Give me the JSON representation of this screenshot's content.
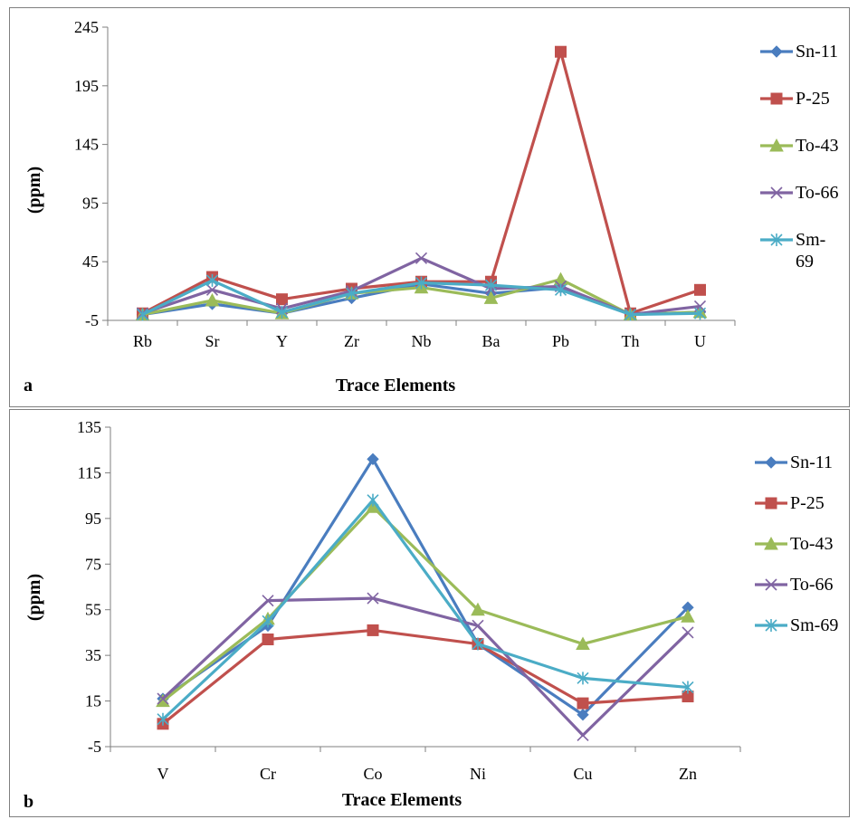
{
  "colors": {
    "Sn-11": "#4a7dbf",
    "P-25": "#c0504d",
    "To-43": "#9bbb59",
    "To-66": "#8064a2",
    "Sm-69": "#4bacc6",
    "axis": "#7f7f7f",
    "frame": "#7f7f7f"
  },
  "chart_data": [
    {
      "type": "line",
      "panel_label": "a",
      "title": "",
      "xlabel": "Trace  Elements",
      "ylabel": "(ppm)",
      "categories": [
        "Rb",
        "Sr",
        "Y",
        "Zr",
        "Nb",
        "Ba",
        "Pb",
        "Th",
        "U"
      ],
      "ylim": [
        -5,
        245
      ],
      "yticks": [
        "-5",
        "45",
        "95",
        "145",
        "195",
        "245"
      ],
      "grid": false,
      "legend_position": "right",
      "series": [
        {
          "name": "Sn-11",
          "marker": "diamond",
          "values": [
            0,
            9,
            1,
            14,
            26,
            18,
            23,
            0,
            2
          ]
        },
        {
          "name": "P-25",
          "marker": "square",
          "values": [
            1,
            32,
            13,
            22,
            28,
            28,
            224,
            1,
            21
          ]
        },
        {
          "name": "To-43",
          "marker": "triangle",
          "values": [
            0,
            12,
            1,
            18,
            23,
            14,
            30,
            0,
            2
          ]
        },
        {
          "name": "To-66",
          "marker": "x",
          "values": [
            1,
            21,
            5,
            20,
            48,
            22,
            24,
            0,
            7
          ]
        },
        {
          "name": "Sm-69",
          "marker": "star",
          "values": [
            0,
            29,
            2,
            18,
            27,
            25,
            21,
            0,
            1
          ]
        }
      ]
    },
    {
      "type": "line",
      "panel_label": "b",
      "title": "",
      "xlabel": "Trace Elements",
      "ylabel": "(ppm)",
      "categories": [
        "V",
        "Cr",
        "Co",
        "Ni",
        "Cu",
        "Zn"
      ],
      "ylim": [
        -5,
        135
      ],
      "yticks": [
        "-5",
        "15",
        "35",
        "55",
        "75",
        "95",
        "115",
        "135"
      ],
      "grid": false,
      "legend_position": "right",
      "series": [
        {
          "name": "Sn-11",
          "marker": "diamond",
          "values": [
            16,
            48,
            121,
            40,
            9,
            56
          ]
        },
        {
          "name": "P-25",
          "marker": "square",
          "values": [
            5,
            42,
            46,
            40,
            14,
            17
          ]
        },
        {
          "name": "To-43",
          "marker": "triangle",
          "values": [
            15,
            51,
            100,
            55,
            40,
            52
          ]
        },
        {
          "name": "To-66",
          "marker": "x",
          "values": [
            16,
            59,
            60,
            48,
            0,
            45
          ]
        },
        {
          "name": "Sm-69",
          "marker": "star",
          "values": [
            7,
            50,
            103,
            40,
            25,
            21
          ]
        }
      ]
    }
  ]
}
